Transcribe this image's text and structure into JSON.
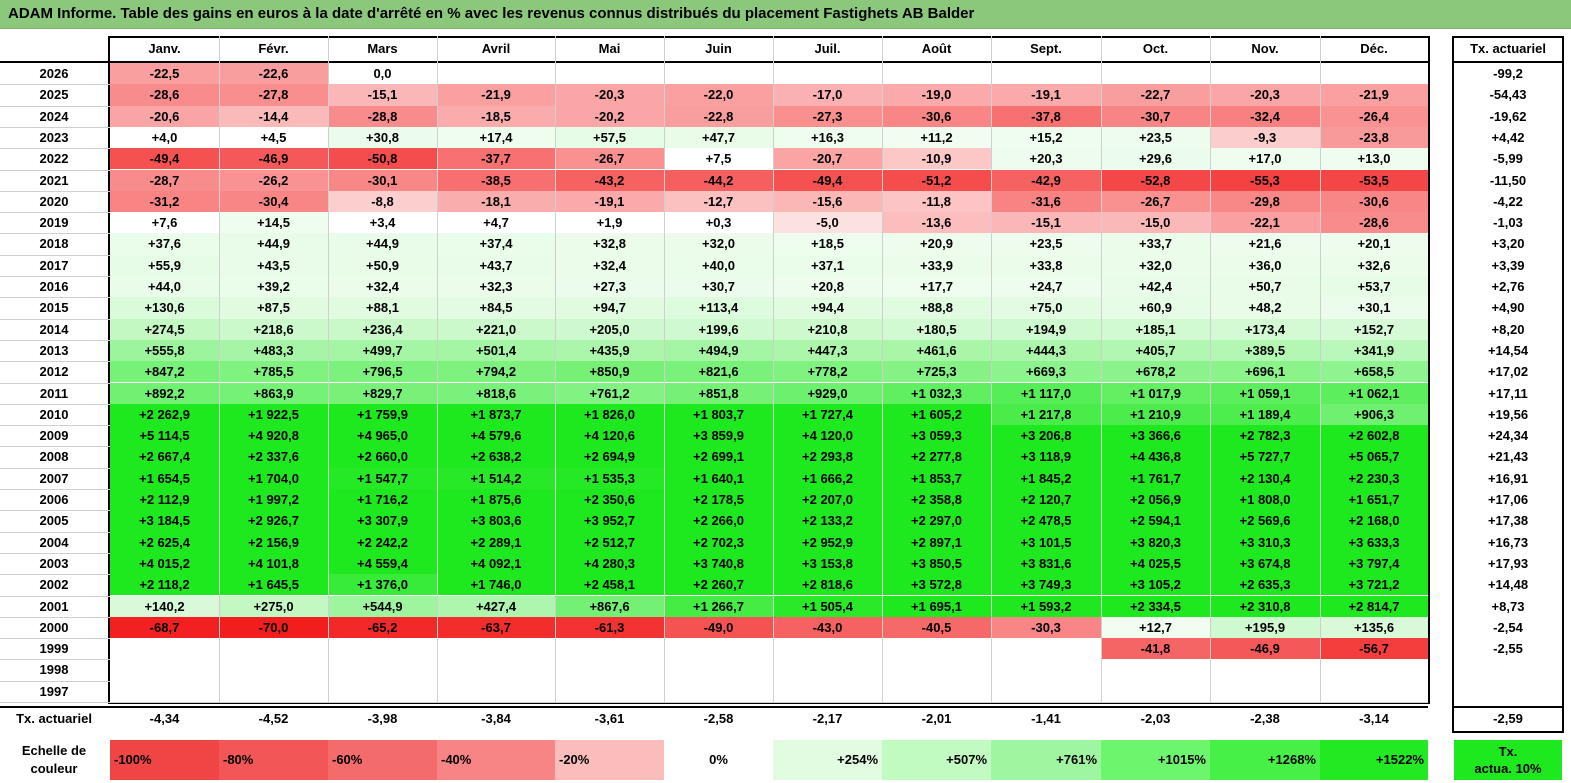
{
  "title": "ADAM Informe. Table des gains en euros à la date d'arrêté en % avec les revenus connus distribués du placement Fastighets AB Balder",
  "months": [
    "Janv.",
    "Févr.",
    "Mars",
    "Avril",
    "Mai",
    "Juin",
    "Juil.",
    "Août",
    "Sept.",
    "Oct.",
    "Nov.",
    "Déc."
  ],
  "tx_header": "Tx. actuariel",
  "rows": [
    {
      "year": "2026",
      "values": [
        "-22,5",
        "-22,6",
        "0,0",
        "",
        "",
        "",
        "",
        "",
        "",
        "",
        "",
        ""
      ],
      "tx": "-99,2"
    },
    {
      "year": "2025",
      "values": [
        "-28,6",
        "-27,8",
        "-15,1",
        "-21,9",
        "-20,3",
        "-22,0",
        "-17,0",
        "-19,0",
        "-19,1",
        "-22,7",
        "-20,3",
        "-21,9"
      ],
      "tx": "-54,43"
    },
    {
      "year": "2024",
      "values": [
        "-20,6",
        "-14,4",
        "-28,8",
        "-18,5",
        "-20,2",
        "-22,8",
        "-27,3",
        "-30,6",
        "-37,8",
        "-30,7",
        "-32,4",
        "-26,4"
      ],
      "tx": "-19,62"
    },
    {
      "year": "2023",
      "values": [
        "+4,0",
        "+4,5",
        "+30,8",
        "+17,4",
        "+57,5",
        "+47,7",
        "+16,3",
        "+11,2",
        "+15,2",
        "+23,5",
        "-9,3",
        "-23,8"
      ],
      "tx": "+4,42"
    },
    {
      "year": "2022",
      "values": [
        "-49,4",
        "-46,9",
        "-50,8",
        "-37,7",
        "-26,7",
        "+7,5",
        "-20,7",
        "-10,9",
        "+20,3",
        "+29,6",
        "+17,0",
        "+13,0"
      ],
      "tx": "-5,99"
    },
    {
      "year": "2021",
      "values": [
        "-28,7",
        "-26,2",
        "-30,1",
        "-38,5",
        "-43,2",
        "-44,2",
        "-49,4",
        "-51,2",
        "-42,9",
        "-52,8",
        "-55,3",
        "-53,5"
      ],
      "tx": "-11,50"
    },
    {
      "year": "2020",
      "values": [
        "-31,2",
        "-30,4",
        "-8,8",
        "-18,1",
        "-19,1",
        "-12,7",
        "-15,6",
        "-11,8",
        "-31,6",
        "-26,7",
        "-29,8",
        "-30,6"
      ],
      "tx": "-4,22"
    },
    {
      "year": "2019",
      "values": [
        "+7,6",
        "+14,5",
        "+3,4",
        "+4,7",
        "+1,9",
        "+0,3",
        "-5,0",
        "-13,6",
        "-15,1",
        "-15,0",
        "-22,1",
        "-28,6"
      ],
      "tx": "-1,03"
    },
    {
      "year": "2018",
      "values": [
        "+37,6",
        "+44,9",
        "+44,9",
        "+37,4",
        "+32,8",
        "+32,0",
        "+18,5",
        "+20,9",
        "+23,5",
        "+33,7",
        "+21,6",
        "+20,1"
      ],
      "tx": "+3,20"
    },
    {
      "year": "2017",
      "values": [
        "+55,9",
        "+43,5",
        "+50,9",
        "+43,7",
        "+32,4",
        "+40,0",
        "+37,1",
        "+33,9",
        "+33,8",
        "+32,0",
        "+36,0",
        "+32,6"
      ],
      "tx": "+3,39"
    },
    {
      "year": "2016",
      "values": [
        "+44,0",
        "+39,2",
        "+32,4",
        "+32,3",
        "+27,3",
        "+30,7",
        "+20,8",
        "+17,7",
        "+24,7",
        "+42,4",
        "+50,7",
        "+53,7"
      ],
      "tx": "+2,76"
    },
    {
      "year": "2015",
      "values": [
        "+130,6",
        "+87,5",
        "+88,1",
        "+84,5",
        "+94,7",
        "+113,4",
        "+94,4",
        "+88,8",
        "+75,0",
        "+60,9",
        "+48,2",
        "+30,1"
      ],
      "tx": "+4,90"
    },
    {
      "year": "2014",
      "values": [
        "+274,5",
        "+218,6",
        "+236,4",
        "+221,0",
        "+205,0",
        "+199,6",
        "+210,8",
        "+180,5",
        "+194,9",
        "+185,1",
        "+173,4",
        "+152,7"
      ],
      "tx": "+8,20"
    },
    {
      "year": "2013",
      "values": [
        "+555,8",
        "+483,3",
        "+499,7",
        "+501,4",
        "+435,9",
        "+494,9",
        "+447,3",
        "+461,6",
        "+444,3",
        "+405,7",
        "+389,5",
        "+341,9"
      ],
      "tx": "+14,54"
    },
    {
      "year": "2012",
      "values": [
        "+847,2",
        "+785,5",
        "+796,5",
        "+794,2",
        "+850,9",
        "+821,6",
        "+778,2",
        "+725,3",
        "+669,3",
        "+678,2",
        "+696,1",
        "+658,5"
      ],
      "tx": "+17,02"
    },
    {
      "year": "2011",
      "values": [
        "+892,2",
        "+863,9",
        "+829,7",
        "+818,6",
        "+761,2",
        "+851,8",
        "+929,0",
        "+1 032,3",
        "+1 117,0",
        "+1 017,9",
        "+1 059,1",
        "+1 062,1"
      ],
      "tx": "+17,11"
    },
    {
      "year": "2010",
      "values": [
        "+2 262,9",
        "+1 922,5",
        "+1 759,9",
        "+1 873,7",
        "+1 826,0",
        "+1 803,7",
        "+1 727,4",
        "+1 605,2",
        "+1 217,8",
        "+1 210,9",
        "+1 189,4",
        "+906,3"
      ],
      "tx": "+19,56"
    },
    {
      "year": "2009",
      "values": [
        "+5 114,5",
        "+4 920,8",
        "+4 965,0",
        "+4 579,6",
        "+4 120,6",
        "+3 859,9",
        "+4 120,0",
        "+3 059,3",
        "+3 206,8",
        "+3 366,6",
        "+2 782,3",
        "+2 602,8"
      ],
      "tx": "+24,34"
    },
    {
      "year": "2008",
      "values": [
        "+2 667,4",
        "+2 337,6",
        "+2 660,0",
        "+2 638,2",
        "+2 694,9",
        "+2 699,1",
        "+2 293,8",
        "+2 277,8",
        "+3 118,9",
        "+4 436,8",
        "+5 727,7",
        "+5 065,7"
      ],
      "tx": "+21,43"
    },
    {
      "year": "2007",
      "values": [
        "+1 654,5",
        "+1 704,0",
        "+1 547,7",
        "+1 514,2",
        "+1 535,3",
        "+1 640,1",
        "+1 666,2",
        "+1 853,7",
        "+1 845,2",
        "+1 761,7",
        "+2 130,4",
        "+2 230,3"
      ],
      "tx": "+16,91"
    },
    {
      "year": "2006",
      "values": [
        "+2 112,9",
        "+1 997,2",
        "+1 716,2",
        "+1 875,6",
        "+2 350,6",
        "+2 178,5",
        "+2 207,0",
        "+2 358,8",
        "+2 120,7",
        "+2 056,9",
        "+1 808,0",
        "+1 651,7"
      ],
      "tx": "+17,06"
    },
    {
      "year": "2005",
      "values": [
        "+3 184,5",
        "+2 926,7",
        "+3 307,9",
        "+3 803,6",
        "+3 952,7",
        "+2 266,0",
        "+2 133,2",
        "+2 297,0",
        "+2 478,5",
        "+2 594,1",
        "+2 569,6",
        "+2 168,0"
      ],
      "tx": "+17,38"
    },
    {
      "year": "2004",
      "values": [
        "+2 625,4",
        "+2 156,9",
        "+2 242,2",
        "+2 289,1",
        "+2 512,7",
        "+2 702,3",
        "+2 952,9",
        "+2 897,1",
        "+3 101,5",
        "+3 820,3",
        "+3 310,3",
        "+3 633,3"
      ],
      "tx": "+16,73"
    },
    {
      "year": "2003",
      "values": [
        "+4 015,2",
        "+4 101,8",
        "+4 559,4",
        "+4 092,1",
        "+4 280,3",
        "+3 740,8",
        "+3 153,8",
        "+3 850,5",
        "+3 831,6",
        "+4 025,5",
        "+3 674,8",
        "+3 797,4"
      ],
      "tx": "+17,93"
    },
    {
      "year": "2002",
      "values": [
        "+2 118,2",
        "+1 645,5",
        "+1 376,0",
        "+1 746,0",
        "+2 458,1",
        "+2 260,7",
        "+2 818,6",
        "+3 572,8",
        "+3 749,3",
        "+3 105,2",
        "+2 635,3",
        "+3 721,2"
      ],
      "tx": "+14,48"
    },
    {
      "year": "2001",
      "values": [
        "+140,2",
        "+275,0",
        "+544,9",
        "+427,4",
        "+867,6",
        "+1 266,7",
        "+1 505,4",
        "+1 695,1",
        "+1 593,2",
        "+2 334,5",
        "+2 310,8",
        "+2 814,7"
      ],
      "tx": "+8,73"
    },
    {
      "year": "2000",
      "values": [
        "-68,7",
        "-70,0",
        "-65,2",
        "-63,7",
        "-61,3",
        "-49,0",
        "-43,0",
        "-40,5",
        "-30,3",
        "+12,7",
        "+195,9",
        "+135,6"
      ],
      "tx": "-2,54"
    },
    {
      "year": "1999",
      "values": [
        "",
        "",
        "",
        "",
        "",
        "",
        "",
        "",
        "",
        "-41,8",
        "-46,9",
        "-56,7"
      ],
      "tx": "-2,55"
    },
    {
      "year": "1998",
      "values": [
        "",
        "",
        "",
        "",
        "",
        "",
        "",
        "",
        "",
        "",
        "",
        ""
      ],
      "tx": ""
    },
    {
      "year": "1997",
      "values": [
        "",
        "",
        "",
        "",
        "",
        "",
        "",
        "",
        "",
        "",
        "",
        ""
      ],
      "tx": ""
    }
  ],
  "footer": {
    "label": "Tx. actuariel",
    "values": [
      "-4,34",
      "-4,52",
      "-3,98",
      "-3,84",
      "-3,61",
      "-2,58",
      "-2,17",
      "-2,01",
      "-1,41",
      "-2,03",
      "-2,38",
      "-3,14"
    ],
    "tx": "-2,59"
  },
  "scale": {
    "label_line1": "Echelle de",
    "label_line2": "couleur",
    "items": [
      "-100%",
      "-80%",
      "-60%",
      "-40%",
      "-20%",
      "0%",
      "+254%",
      "+507%",
      "+761%",
      "+1015%",
      "+1268%",
      "+1522%"
    ],
    "colors": [
      "#f04545",
      "#f25656",
      "#f46b6b",
      "#f78585",
      "#fbbcbc",
      "#ffffff",
      "#e2fce2",
      "#c2fbc2",
      "#a0f5a0",
      "#6ef56e",
      "#46f046",
      "#22e922"
    ],
    "tx_label_line1": "Tx.",
    "tx_label_line2": "actua. 10%",
    "tx_color": "#1ee81e"
  }
}
